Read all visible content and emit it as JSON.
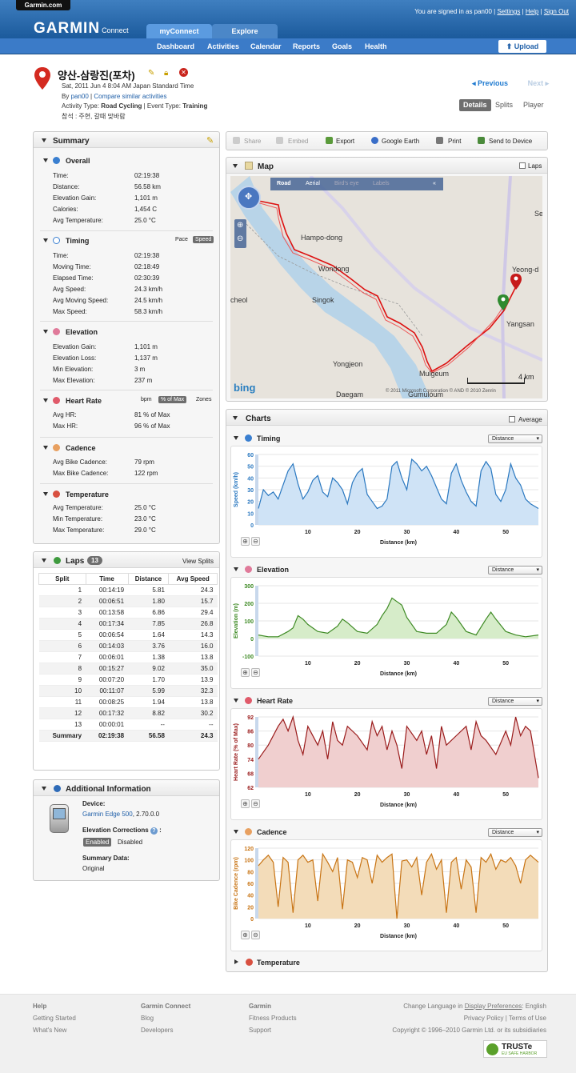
{
  "header": {
    "site_tab": "Garmin.com",
    "logo": "GARMIN",
    "logo_sub": "Connect",
    "signed_in": "You are signed in as pan00",
    "links": [
      "Settings",
      "Help",
      "Sign Out"
    ],
    "tabs": [
      "myConnect",
      "Explore"
    ],
    "nav": [
      "Dashboard",
      "Activities",
      "Calendar",
      "Reports",
      "Goals",
      "Health"
    ],
    "upload": "Upload"
  },
  "activity": {
    "title": "양산-삼랑진(포차)",
    "date": "Sat, 2011 Jun 4 8:04 AM Japan Standard Time",
    "by_label": "By",
    "user": "pan00",
    "compare": "Compare similar activities",
    "type_label": "Activity Type:",
    "type": "Road Cycling",
    "event_label": "Event Type:",
    "event": "Training",
    "note": "참석 : 주현, 갈때 맞바람"
  },
  "nav_links": {
    "previous": "Previous",
    "next": "Next"
  },
  "view_tabs": [
    "Details",
    "Splits",
    "Player"
  ],
  "summary": {
    "title": "Summary",
    "overall": {
      "title": "Overall",
      "rows": [
        [
          "Time:",
          "02:19:38"
        ],
        [
          "Distance:",
          "56.58 km"
        ],
        [
          "Elevation Gain:",
          "1,101 m"
        ],
        [
          "Calories:",
          "1,454 C"
        ],
        [
          "Avg Temperature:",
          "25.0 °C"
        ]
      ]
    },
    "timing": {
      "title": "Timing",
      "toggle": [
        "Pace",
        "Speed"
      ],
      "rows": [
        [
          "Time:",
          "02:19:38"
        ],
        [
          "Moving Time:",
          "02:18:49"
        ],
        [
          "Elapsed Time:",
          "02:30:39"
        ],
        [
          "Avg Speed:",
          "24.3 km/h"
        ],
        [
          "Avg Moving Speed:",
          "24.5 km/h"
        ],
        [
          "Max Speed:",
          "58.3 km/h"
        ]
      ]
    },
    "elevation": {
      "title": "Elevation",
      "rows": [
        [
          "Elevation Gain:",
          "1,101 m"
        ],
        [
          "Elevation Loss:",
          "1,137 m"
        ],
        [
          "Min Elevation:",
          "3 m"
        ],
        [
          "Max Elevation:",
          "237 m"
        ]
      ]
    },
    "heart_rate": {
      "title": "Heart Rate",
      "toggle": [
        "bpm",
        "% of Max",
        "Zones"
      ],
      "rows": [
        [
          "Avg HR:",
          "81 % of Max"
        ],
        [
          "Max HR:",
          "96 % of Max"
        ]
      ]
    },
    "cadence": {
      "title": "Cadence",
      "rows": [
        [
          "Avg Bike Cadence:",
          "79 rpm"
        ],
        [
          "Max Bike Cadence:",
          "122 rpm"
        ]
      ]
    },
    "temperature": {
      "title": "Temperature",
      "rows": [
        [
          "Avg Temperature:",
          "25.0 °C"
        ],
        [
          "Min Temperature:",
          "23.0 °C"
        ],
        [
          "Max Temperature:",
          "29.0 °C"
        ]
      ]
    }
  },
  "laps": {
    "title": "Laps",
    "count": "13",
    "view_splits": "View Splits",
    "headers": [
      "Split",
      "Time",
      "Distance",
      "Avg Speed"
    ],
    "rows": [
      [
        "1",
        "00:14:19",
        "5.81",
        "24.3"
      ],
      [
        "2",
        "00:06:51",
        "1.80",
        "15.7"
      ],
      [
        "3",
        "00:13:58",
        "6.86",
        "29.4"
      ],
      [
        "4",
        "00:17:34",
        "7.85",
        "26.8"
      ],
      [
        "5",
        "00:06:54",
        "1.64",
        "14.3"
      ],
      [
        "6",
        "00:14:03",
        "3.76",
        "16.0"
      ],
      [
        "7",
        "00:06:01",
        "1.38",
        "13.8"
      ],
      [
        "8",
        "00:15:27",
        "9.02",
        "35.0"
      ],
      [
        "9",
        "00:07:20",
        "1.70",
        "13.9"
      ],
      [
        "10",
        "00:11:07",
        "5.99",
        "32.3"
      ],
      [
        "11",
        "00:08:25",
        "1.94",
        "13.8"
      ],
      [
        "12",
        "00:17:32",
        "8.82",
        "30.2"
      ],
      [
        "13",
        "00:00:01",
        "--",
        "--"
      ]
    ],
    "summary": [
      "Summary",
      "02:19:38",
      "56.58",
      "24.3"
    ]
  },
  "additional": {
    "title": "Additional Information",
    "device_label": "Device:",
    "device": "Garmin Edge 500",
    "device_ver": ", 2.70.0.0",
    "elev_label": "Elevation Corrections",
    "elev_opts": [
      "Enabled",
      "Disabled"
    ],
    "summary_label": "Summary Data:",
    "summary_val": "Original"
  },
  "toolbar": [
    "Share",
    "Embed",
    "Export",
    "Google Earth",
    "Print",
    "Send to Device"
  ],
  "map": {
    "title": "Map",
    "laps": "Laps",
    "modes": [
      "Road",
      "Aerial",
      "Bird's eye",
      "Labels"
    ],
    "labels": [
      "Hampo-dong",
      "Wondong",
      "Singok",
      "cheol",
      "Yongjeon",
      "Mulgeum",
      "Daegam",
      "Gumuloum",
      "Yeong-d",
      "Yangsan",
      "Se"
    ],
    "scale": "4 km",
    "brand": "bing",
    "copyright": "© 2011 Microsoft Corporation  © AND  © 2010 Zenrin"
  },
  "charts_title": "Charts",
  "average_label": "Average",
  "x_axis_label": "Distance (km)",
  "selector_value": "Distance",
  "chart_data": [
    {
      "type": "area",
      "title": "Timing",
      "ylabel": "Speed (km/h)",
      "xlabel": "Distance (km)",
      "xlim": [
        0,
        56.6
      ],
      "ylim": [
        0,
        60
      ],
      "yticks": [
        0,
        10,
        20,
        30,
        40,
        50,
        60
      ],
      "xticks": [
        10,
        20,
        30,
        40,
        50
      ],
      "color": "#2a78c0",
      "fill": "#cfe3f6",
      "x": [
        0,
        1,
        2,
        3,
        4,
        5,
        6,
        7,
        8,
        9,
        10,
        11,
        12,
        13,
        14,
        15,
        16,
        17,
        18,
        19,
        20,
        21,
        22,
        23,
        24,
        25,
        26,
        27,
        28,
        29,
        30,
        31,
        32,
        33,
        34,
        35,
        36,
        37,
        38,
        39,
        40,
        41,
        42,
        43,
        44,
        45,
        46,
        47,
        48,
        49,
        50,
        51,
        52,
        53,
        54,
        55,
        56.6
      ],
      "values": [
        14,
        30,
        25,
        28,
        22,
        34,
        46,
        52,
        35,
        22,
        28,
        38,
        42,
        28,
        24,
        40,
        36,
        30,
        18,
        36,
        44,
        48,
        26,
        20,
        14,
        16,
        22,
        50,
        54,
        40,
        30,
        56,
        52,
        46,
        50,
        42,
        32,
        22,
        18,
        44,
        52,
        38,
        28,
        20,
        16,
        46,
        54,
        48,
        26,
        20,
        30,
        52,
        40,
        34,
        22,
        18,
        14
      ]
    },
    {
      "type": "area",
      "title": "Elevation",
      "ylabel": "Elevation (m)",
      "xlabel": "Distance (km)",
      "xlim": [
        0,
        56.6
      ],
      "ylim": [
        -100,
        300
      ],
      "yticks": [
        -100,
        0,
        100,
        200,
        300
      ],
      "xticks": [
        10,
        20,
        30,
        40,
        50
      ],
      "color": "#3e8a24",
      "fill": "#d6ecc9",
      "x": [
        0,
        2,
        4,
        6,
        7,
        8,
        9,
        10,
        12,
        14,
        16,
        17,
        18,
        20,
        22,
        24,
        25,
        26,
        27,
        28,
        29,
        30,
        32,
        34,
        36,
        38,
        39,
        40,
        42,
        44,
        46,
        47,
        48,
        50,
        52,
        54,
        56.6
      ],
      "values": [
        20,
        10,
        10,
        40,
        60,
        130,
        110,
        80,
        40,
        30,
        70,
        110,
        90,
        40,
        30,
        80,
        130,
        170,
        230,
        210,
        190,
        120,
        40,
        30,
        30,
        80,
        150,
        120,
        40,
        20,
        110,
        150,
        110,
        40,
        20,
        10,
        20
      ]
    },
    {
      "type": "area",
      "title": "Heart Rate",
      "ylabel": "Heart Rate (% of Max)",
      "xlabel": "Distance (km)",
      "xlim": [
        0,
        56.6
      ],
      "ylim": [
        62,
        92
      ],
      "yticks": [
        62,
        68,
        74,
        80,
        86,
        92
      ],
      "xticks": [
        10,
        20,
        30,
        40,
        50
      ],
      "color": "#9a1b1b",
      "fill": "#f0cfcf",
      "x": [
        0,
        2,
        4,
        5,
        6,
        7,
        8,
        9,
        10,
        12,
        13,
        14,
        15,
        16,
        17,
        18,
        20,
        22,
        23,
        24,
        25,
        26,
        27,
        28,
        29,
        30,
        32,
        33,
        34,
        35,
        36,
        37,
        38,
        40,
        42,
        43,
        44,
        45,
        46,
        48,
        50,
        51,
        52,
        53,
        54,
        55,
        56.6
      ],
      "values": [
        74,
        80,
        88,
        91,
        86,
        92,
        82,
        76,
        88,
        80,
        86,
        74,
        90,
        82,
        80,
        88,
        84,
        78,
        90,
        84,
        88,
        78,
        86,
        80,
        70,
        88,
        82,
        86,
        76,
        84,
        70,
        88,
        80,
        84,
        88,
        78,
        90,
        84,
        82,
        76,
        86,
        80,
        92,
        84,
        88,
        86,
        66
      ]
    },
    {
      "type": "area",
      "title": "Cadence",
      "ylabel": "Bike Cadence (rpm)",
      "xlabel": "Distance (km)",
      "xlim": [
        0,
        56.6
      ],
      "ylim": [
        0,
        120
      ],
      "yticks": [
        0,
        20,
        40,
        60,
        80,
        100,
        120
      ],
      "xticks": [
        10,
        20,
        30,
        40,
        50
      ],
      "color": "#c87414",
      "fill": "#f3dcb9",
      "x": [
        0,
        1,
        2,
        3,
        4,
        5,
        6,
        7,
        8,
        9,
        10,
        11,
        12,
        13,
        14,
        15,
        16,
        17,
        18,
        19,
        20,
        21,
        22,
        23,
        24,
        25,
        26,
        27,
        28,
        29,
        30,
        31,
        32,
        33,
        34,
        35,
        36,
        37,
        38,
        39,
        40,
        41,
        42,
        43,
        44,
        45,
        46,
        47,
        48,
        49,
        50,
        51,
        52,
        53,
        54,
        55,
        56.6
      ],
      "values": [
        90,
        100,
        108,
        96,
        20,
        104,
        96,
        10,
        100,
        108,
        96,
        100,
        30,
        110,
        96,
        80,
        104,
        16,
        100,
        96,
        70,
        104,
        100,
        60,
        108,
        96,
        104,
        110,
        0,
        98,
        100,
        88,
        104,
        40,
        96,
        110,
        84,
        100,
        10,
        96,
        104,
        50,
        100,
        88,
        10,
        104,
        96,
        110,
        84,
        100,
        96,
        104,
        90,
        60,
        100,
        108,
        96
      ]
    }
  ],
  "temperature_chart": "Temperature",
  "footer": {
    "help": {
      "title": "Help",
      "items": [
        "Getting Started",
        "What's New"
      ]
    },
    "connect": {
      "title": "Garmin Connect",
      "items": [
        "Blog",
        "Developers"
      ]
    },
    "garmin": {
      "title": "Garmin",
      "items": [
        "Fitness Products",
        "Support"
      ]
    },
    "lang_label": "Change Language in",
    "lang_link": "Display Preferences",
    "lang_val": ": English",
    "policy": "Privacy Policy | Terms of Use",
    "copyright": "Copyright © 1996–2010 Garmin Ltd. or its subsidiaries",
    "truste": "TRUSTe",
    "truste_sub": "EU SAFE HARBOR"
  }
}
